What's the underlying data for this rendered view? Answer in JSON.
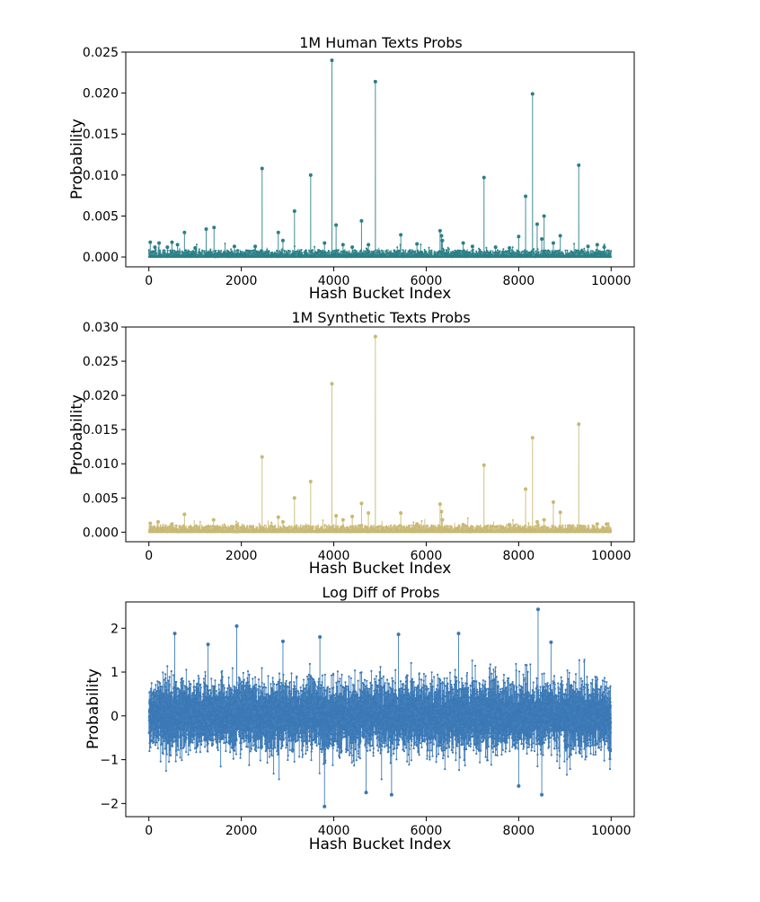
{
  "chart_data": [
    {
      "type": "line",
      "title": "1M Human Texts Probs",
      "xlabel": "Hash Bucket Index",
      "ylabel": "Probability",
      "xlim": [
        -500,
        10500
      ],
      "ylim": [
        -0.0012,
        0.025
      ],
      "xticks": [
        "0",
        "2000",
        "4000",
        "6000",
        "8000",
        "10000"
      ],
      "xtick_values": [
        0,
        2000,
        4000,
        6000,
        8000,
        10000
      ],
      "yticks": [
        "0.000",
        "0.005",
        "0.010",
        "0.015",
        "0.020",
        "0.025"
      ],
      "ytick_values": [
        0,
        0.005,
        0.01,
        0.015,
        0.02,
        0.025
      ],
      "color": "#2a7f86",
      "grid": false,
      "n_points": 10000,
      "peaks": [
        {
          "x": 30,
          "y": 0.0018
        },
        {
          "x": 130,
          "y": 0.0012
        },
        {
          "x": 220,
          "y": 0.0017
        },
        {
          "x": 400,
          "y": 0.0012
        },
        {
          "x": 500,
          "y": 0.0018
        },
        {
          "x": 620,
          "y": 0.0015
        },
        {
          "x": 770,
          "y": 0.003
        },
        {
          "x": 1000,
          "y": 0.0011
        },
        {
          "x": 1240,
          "y": 0.0034
        },
        {
          "x": 1410,
          "y": 0.0036
        },
        {
          "x": 1850,
          "y": 0.0013
        },
        {
          "x": 2300,
          "y": 0.0013
        },
        {
          "x": 2450,
          "y": 0.0108
        },
        {
          "x": 2800,
          "y": 0.003
        },
        {
          "x": 2900,
          "y": 0.002
        },
        {
          "x": 3150,
          "y": 0.0056
        },
        {
          "x": 3500,
          "y": 0.01
        },
        {
          "x": 3800,
          "y": 0.0017
        },
        {
          "x": 3960,
          "y": 0.024
        },
        {
          "x": 4050,
          "y": 0.0039
        },
        {
          "x": 4200,
          "y": 0.0015
        },
        {
          "x": 4400,
          "y": 0.0012
        },
        {
          "x": 4600,
          "y": 0.0044
        },
        {
          "x": 4750,
          "y": 0.0015
        },
        {
          "x": 4900,
          "y": 0.0214
        },
        {
          "x": 5450,
          "y": 0.0027
        },
        {
          "x": 5800,
          "y": 0.0016
        },
        {
          "x": 6300,
          "y": 0.0032
        },
        {
          "x": 6330,
          "y": 0.0026
        },
        {
          "x": 6350,
          "y": 0.002
        },
        {
          "x": 6800,
          "y": 0.0017
        },
        {
          "x": 7000,
          "y": 0.0013
        },
        {
          "x": 7250,
          "y": 0.0097
        },
        {
          "x": 7500,
          "y": 0.0012
        },
        {
          "x": 7800,
          "y": 0.0011
        },
        {
          "x": 8000,
          "y": 0.0025
        },
        {
          "x": 8150,
          "y": 0.0074
        },
        {
          "x": 8300,
          "y": 0.0199
        },
        {
          "x": 8400,
          "y": 0.004
        },
        {
          "x": 8500,
          "y": 0.0022
        },
        {
          "x": 8550,
          "y": 0.005
        },
        {
          "x": 8750,
          "y": 0.0017
        },
        {
          "x": 8900,
          "y": 0.0026
        },
        {
          "x": 9300,
          "y": 0.0112
        },
        {
          "x": 9500,
          "y": 0.0013
        },
        {
          "x": 9700,
          "y": 0.0015
        },
        {
          "x": 9850,
          "y": 0.0012
        }
      ]
    },
    {
      "type": "line",
      "title": "1M Synthetic Texts Probs",
      "xlabel": "Hash Bucket Index",
      "ylabel": "Probability",
      "xlim": [
        -500,
        10500
      ],
      "ylim": [
        -0.0014,
        0.03
      ],
      "xticks": [
        "0",
        "2000",
        "4000",
        "6000",
        "8000",
        "10000"
      ],
      "xtick_values": [
        0,
        2000,
        4000,
        6000,
        8000,
        10000
      ],
      "yticks": [
        "0.000",
        "0.005",
        "0.010",
        "0.015",
        "0.020",
        "0.025",
        "0.030"
      ],
      "ytick_values": [
        0,
        0.005,
        0.01,
        0.015,
        0.02,
        0.025,
        0.03
      ],
      "color": "#c8b873",
      "grid": false,
      "n_points": 10000,
      "peaks": [
        {
          "x": 30,
          "y": 0.0013
        },
        {
          "x": 200,
          "y": 0.0015
        },
        {
          "x": 500,
          "y": 0.0012
        },
        {
          "x": 770,
          "y": 0.0026
        },
        {
          "x": 1400,
          "y": 0.0018
        },
        {
          "x": 1900,
          "y": 0.001
        },
        {
          "x": 2450,
          "y": 0.011
        },
        {
          "x": 2800,
          "y": 0.0022
        },
        {
          "x": 2900,
          "y": 0.0015
        },
        {
          "x": 3150,
          "y": 0.005
        },
        {
          "x": 3500,
          "y": 0.0074
        },
        {
          "x": 3960,
          "y": 0.0217
        },
        {
          "x": 4050,
          "y": 0.0024
        },
        {
          "x": 4200,
          "y": 0.0018
        },
        {
          "x": 4400,
          "y": 0.0023
        },
        {
          "x": 4600,
          "y": 0.0042
        },
        {
          "x": 4750,
          "y": 0.0028
        },
        {
          "x": 4900,
          "y": 0.0286
        },
        {
          "x": 5450,
          "y": 0.0028
        },
        {
          "x": 5800,
          "y": 0.0012
        },
        {
          "x": 6300,
          "y": 0.0041
        },
        {
          "x": 6330,
          "y": 0.003
        },
        {
          "x": 6350,
          "y": 0.0018
        },
        {
          "x": 6800,
          "y": 0.0011
        },
        {
          "x": 7250,
          "y": 0.0098
        },
        {
          "x": 7800,
          "y": 0.0011
        },
        {
          "x": 8150,
          "y": 0.0063
        },
        {
          "x": 8300,
          "y": 0.0138
        },
        {
          "x": 8400,
          "y": 0.0015
        },
        {
          "x": 8550,
          "y": 0.0018
        },
        {
          "x": 8750,
          "y": 0.0044
        },
        {
          "x": 8900,
          "y": 0.0029
        },
        {
          "x": 9300,
          "y": 0.0158
        },
        {
          "x": 9700,
          "y": 0.0012
        },
        {
          "x": 9900,
          "y": 0.0012
        }
      ]
    },
    {
      "type": "line",
      "title": "Log Diff of Probs",
      "xlabel": "Hash Bucket Index",
      "ylabel": "Probability",
      "xlim": [
        -500,
        10500
      ],
      "ylim": [
        -2.3,
        2.6
      ],
      "xticks": [
        "0",
        "2000",
        "4000",
        "6000",
        "8000",
        "10000"
      ],
      "xtick_values": [
        0,
        2000,
        4000,
        6000,
        8000,
        10000
      ],
      "yticks": [
        "−2",
        "−1",
        "0",
        "1",
        "2"
      ],
      "ytick_values": [
        -2,
        -1,
        0,
        1,
        2
      ],
      "color": "#3a78b5",
      "grid": false,
      "n_points": 10000,
      "value_range": [
        -2.1,
        2.43
      ],
      "notable_points": [
        {
          "x": 560,
          "y": 1.88
        },
        {
          "x": 1280,
          "y": 1.63
        },
        {
          "x": 1900,
          "y": 2.05
        },
        {
          "x": 2900,
          "y": 1.7
        },
        {
          "x": 3700,
          "y": 1.8
        },
        {
          "x": 3800,
          "y": -2.07
        },
        {
          "x": 4700,
          "y": -1.75
        },
        {
          "x": 5250,
          "y": -1.8
        },
        {
          "x": 5400,
          "y": 1.86
        },
        {
          "x": 6700,
          "y": 1.88
        },
        {
          "x": 8000,
          "y": -1.6
        },
        {
          "x": 8420,
          "y": 2.43
        },
        {
          "x": 8500,
          "y": -1.8
        },
        {
          "x": 8700,
          "y": 1.68
        }
      ]
    }
  ]
}
